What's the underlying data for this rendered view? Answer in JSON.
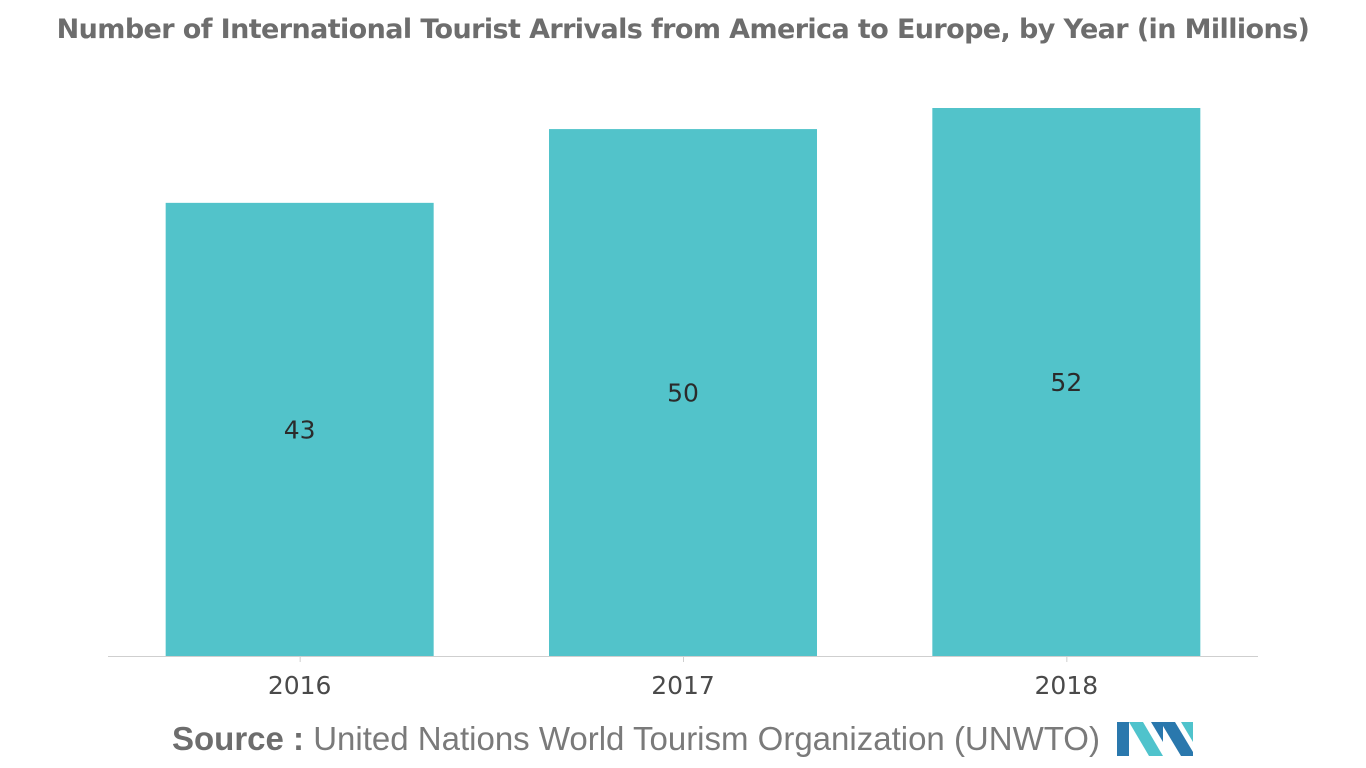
{
  "colors": {
    "bar": "#52c3ca",
    "title": "#6d6d6d",
    "axis_line": "#cfcfcf",
    "tick_label": "#4a4a4a",
    "data_label": "#2b2b2b",
    "source_label": "#6d6d6d",
    "source_text": "#7a7a7a",
    "logo_dark": "#2a78ad",
    "logo_light": "#4fc3cc"
  },
  "chart_data": {
    "type": "bar",
    "title": "Number of International Tourist Arrivals from America to Europe, by Year (in Millions)",
    "categories": [
      "2016",
      "2017",
      "2018"
    ],
    "values": [
      43,
      50,
      52
    ],
    "data_labels": [
      "43",
      "50",
      "52"
    ],
    "xlabel": "",
    "ylabel": "",
    "ylim": [
      0,
      52
    ],
    "grid": false,
    "legend": "none"
  },
  "source": {
    "label": "Source :",
    "text": "United Nations World Tourism Organization (UNWTO)"
  },
  "logo": {
    "icon": "mordor-intelligence-logo-icon"
  }
}
